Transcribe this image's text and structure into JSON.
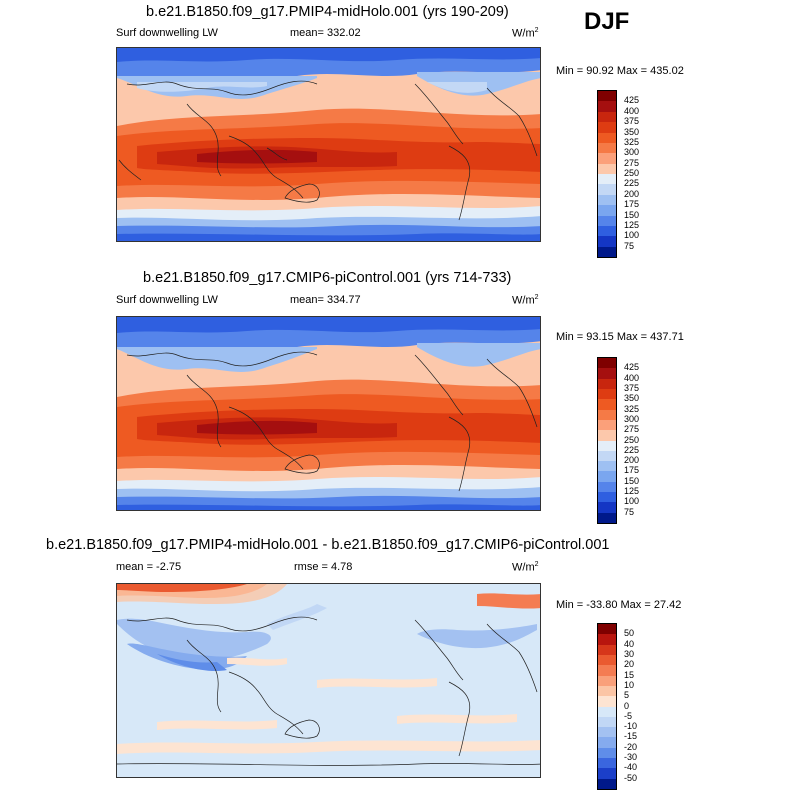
{
  "season": "DJF",
  "panels": [
    {
      "title": "b.e21.B1850.f09_g17.PMIP4-midHolo.001 (yrs 190-209)",
      "variable": "Surf downwelling LW",
      "stat": "mean= 332.02",
      "units": "W/m",
      "units_sup": "2",
      "minmax": "Min =  90.92 Max = 435.02",
      "colorbar_labels": [
        "425",
        "400",
        "375",
        "350",
        "325",
        "300",
        "275",
        "250",
        "225",
        "200",
        "175",
        "150",
        "125",
        "100",
        "75"
      ]
    },
    {
      "title": "b.e21.B1850.f09_g17.CMIP6-piControl.001 (yrs 714-733)",
      "variable": "Surf downwelling LW",
      "stat": "mean= 334.77",
      "units": "W/m",
      "units_sup": "2",
      "minmax": "Min =  93.15 Max = 437.71",
      "colorbar_labels": [
        "425",
        "400",
        "375",
        "350",
        "325",
        "300",
        "275",
        "250",
        "225",
        "200",
        "175",
        "150",
        "125",
        "100",
        "75"
      ]
    },
    {
      "title": "b.e21.B1850.f09_g17.PMIP4-midHolo.001 - b.e21.B1850.f09_g17.CMIP6-piControl.001",
      "stat_mean": "mean =  -2.75",
      "stat_rmse": "rmse =  4.78",
      "units": "W/m",
      "units_sup": "2",
      "minmax": "Min = -33.80 Max =  27.42",
      "colorbar_labels": [
        "50",
        "40",
        "30",
        "20",
        "15",
        "10",
        "5",
        "0",
        "-5",
        "-10",
        "-15",
        "-20",
        "-30",
        "-40",
        "-50"
      ]
    }
  ],
  "colors": {
    "abs_palette": [
      "#7f0000",
      "#a50f0f",
      "#c8260e",
      "#de3c12",
      "#ee5a22",
      "#f57a46",
      "#fba07a",
      "#fcc8ab",
      "#e4eef8",
      "#c3d8f5",
      "#9ec0f2",
      "#7aa6ef",
      "#5584ea",
      "#2f5fe0",
      "#1436c4",
      "#00198a"
    ],
    "diff_palette": [
      "#7f0000",
      "#b8150e",
      "#d6361a",
      "#ea5a30",
      "#f47c52",
      "#f9a07a",
      "#fbc5a5",
      "#fde4d2",
      "#d7e8f8",
      "#c1d7f5",
      "#a3c1f1",
      "#85abee",
      "#5f8de9",
      "#3a66df",
      "#1b3fc9",
      "#00198a"
    ]
  }
}
